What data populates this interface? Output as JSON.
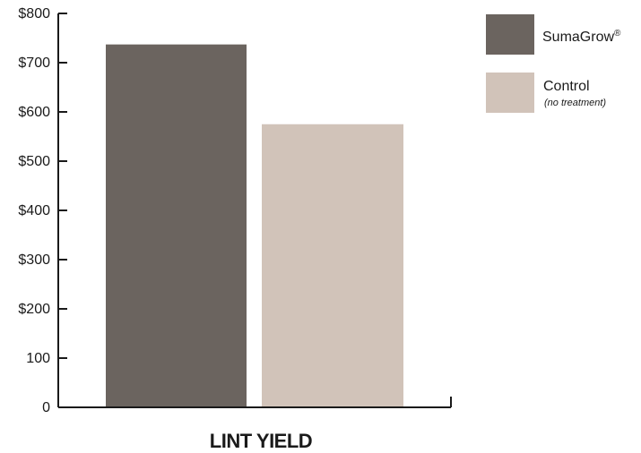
{
  "chart_data": {
    "type": "bar",
    "categories": [
      "LINT YIELD"
    ],
    "series": [
      {
        "name": "SumaGrow®",
        "values": [
          737
        ],
        "color": "#6b645f"
      },
      {
        "name": "Control",
        "subtitle": "(no treatment)",
        "values": [
          575
        ],
        "color": "#d1c3b9"
      }
    ],
    "xlabel": "LINT YIELD",
    "ylabel": "",
    "ylim": [
      0,
      800
    ],
    "yticks": [
      {
        "value": 0,
        "label": "0"
      },
      {
        "value": 100,
        "label": "100"
      },
      {
        "value": 200,
        "label": "$200"
      },
      {
        "value": 300,
        "label": "$300"
      },
      {
        "value": 400,
        "label": "$400"
      },
      {
        "value": 500,
        "label": "$500"
      },
      {
        "value": 600,
        "label": "$600"
      },
      {
        "value": 700,
        "label": "$700"
      },
      {
        "value": 800,
        "label": "$800"
      }
    ],
    "grid": false,
    "legend_position": "top-right"
  },
  "legend": {
    "items": [
      {
        "label": "SumaGrow",
        "sup": "®",
        "sub": "",
        "color": "#6b645f"
      },
      {
        "label": "Control",
        "sup": "",
        "sub": "(no treatment)",
        "color": "#d1c3b9"
      }
    ]
  }
}
